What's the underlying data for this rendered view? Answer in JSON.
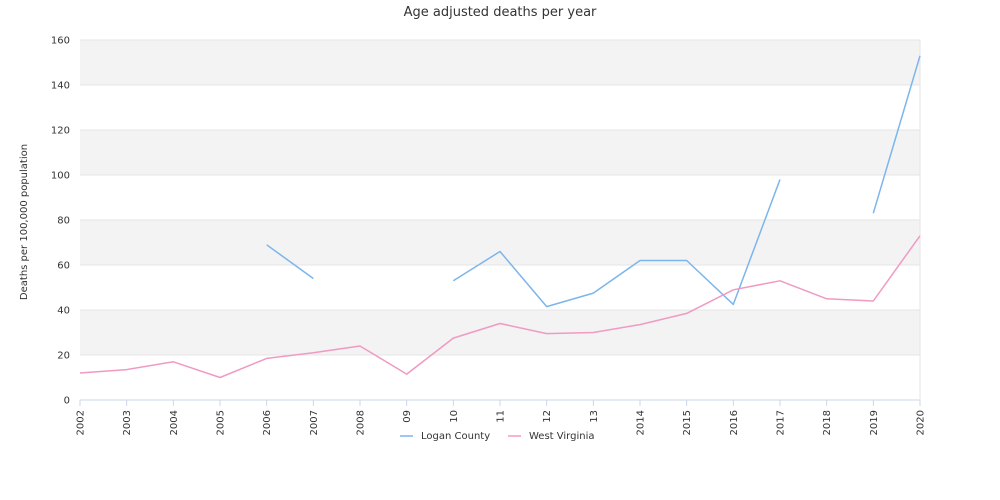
{
  "chart_data": {
    "type": "line",
    "title": "Age adjusted deaths per year",
    "xlabel": "",
    "ylabel": "Deaths per 100,000 population",
    "categories": [
      "2002",
      "2003",
      "2004",
      "2005",
      "2006",
      "2007",
      "2008",
      "09",
      "10",
      "11",
      "12",
      "13",
      "2014",
      "2015",
      "2016",
      "2017",
      "2018",
      "2019",
      "2020"
    ],
    "ylim": [
      0,
      160
    ],
    "yticks": [
      "0",
      "20",
      "40",
      "60",
      "80",
      "100",
      "120",
      "140",
      "160"
    ],
    "grid": true,
    "legend": "bottom-center",
    "series": [
      {
        "name": "Logan County",
        "color": "#7cb5ec",
        "values": [
          null,
          null,
          null,
          null,
          69,
          54,
          null,
          null,
          53,
          66,
          41.5,
          47.5,
          62,
          62,
          42.5,
          98,
          null,
          83,
          153
        ]
      },
      {
        "name": "West Virginia",
        "color": "#f09ac3",
        "values": [
          12,
          13.5,
          17,
          10,
          18.5,
          21,
          24,
          11.5,
          27.5,
          34,
          29.5,
          30,
          33.5,
          38.5,
          49,
          53,
          45,
          44,
          73
        ]
      }
    ],
    "band_colors": [
      "#f3f3f3",
      "#ffffff"
    ]
  }
}
